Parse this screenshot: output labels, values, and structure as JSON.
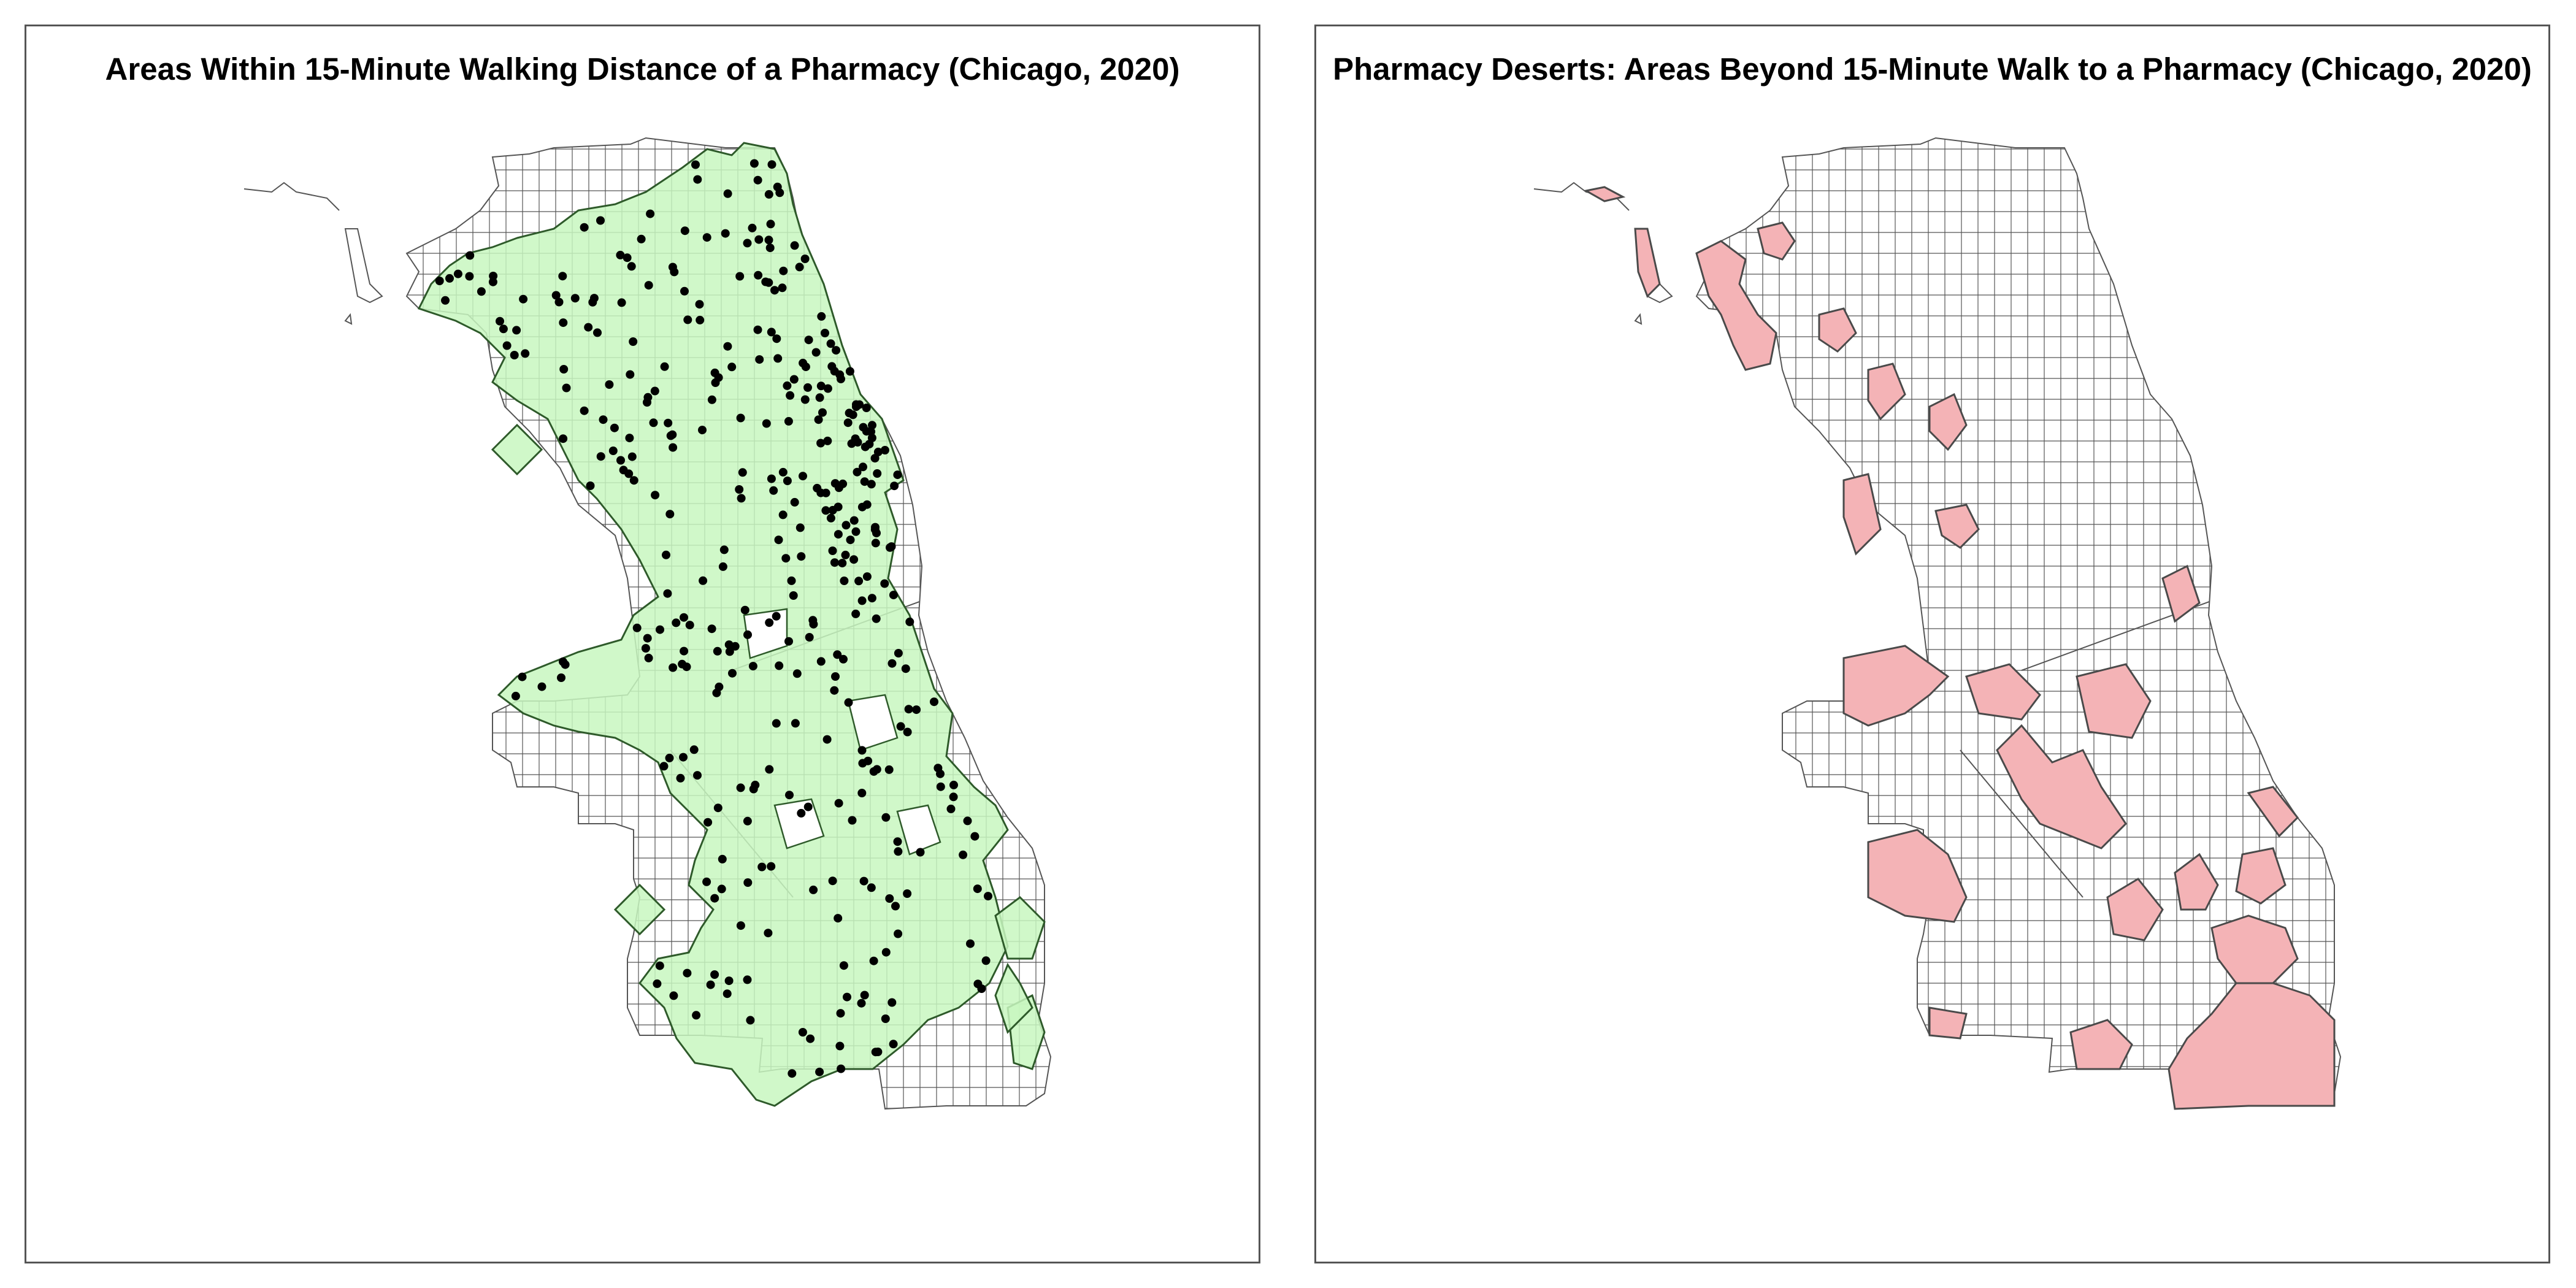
{
  "colors": {
    "walkable_fill": "#c8f7c0",
    "walkable_stroke": "#2e5a2a",
    "desert_fill": "#f4b3b6",
    "desert_stroke": "#4a4a4a",
    "tract_line": "#555555",
    "pharmacy_dot": "#000000",
    "panel_border": "#555555"
  },
  "left_panel": {
    "title": "Areas Within 15-Minute Walking Distance of a Pharmacy (Chicago, 2020)"
  },
  "right_panel": {
    "title": "Pharmacy Deserts: Areas Beyond 15-Minute Walk to a Pharmacy (Chicago, 2020)"
  },
  "legend": []
}
